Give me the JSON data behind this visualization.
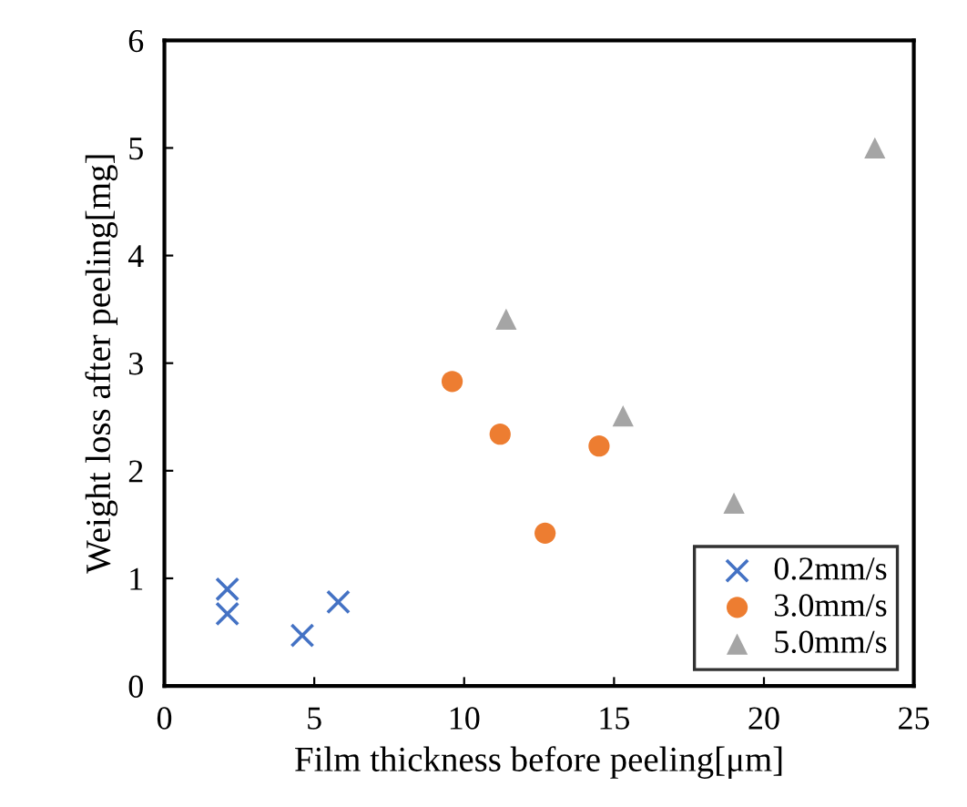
{
  "chart_data": {
    "type": "scatter",
    "xlabel": "Film thickness before peeling[μm]",
    "ylabel": "Weight loss after peeling[mg]",
    "xlim": [
      0,
      25
    ],
    "xticks": [
      0,
      5,
      10,
      15,
      20,
      25
    ],
    "ylim": [
      0,
      6
    ],
    "yticks": [
      0,
      1,
      2,
      3,
      4,
      5,
      6
    ],
    "grid": false,
    "legend": "bottom right",
    "series": [
      {
        "name": "0.2mm/s",
        "color": "#4472c4",
        "marker": "cross",
        "x": [
          2.1,
          2.1,
          4.6,
          5.8
        ],
        "values": [
          0.9,
          0.67,
          0.47,
          0.78
        ]
      },
      {
        "name": "3.0mm/s",
        "color": "#ed7d31",
        "marker": "circle",
        "x": [
          9.6,
          11.2,
          14.5,
          12.7
        ],
        "values": [
          2.83,
          2.34,
          2.23,
          1.42
        ]
      },
      {
        "name": "5.0mm/s",
        "color": "#a5a5a5",
        "marker": "triangle",
        "x": [
          11.4,
          15.3,
          19.0,
          23.7
        ],
        "values": [
          3.41,
          2.51,
          1.7,
          5.0
        ]
      }
    ]
  }
}
